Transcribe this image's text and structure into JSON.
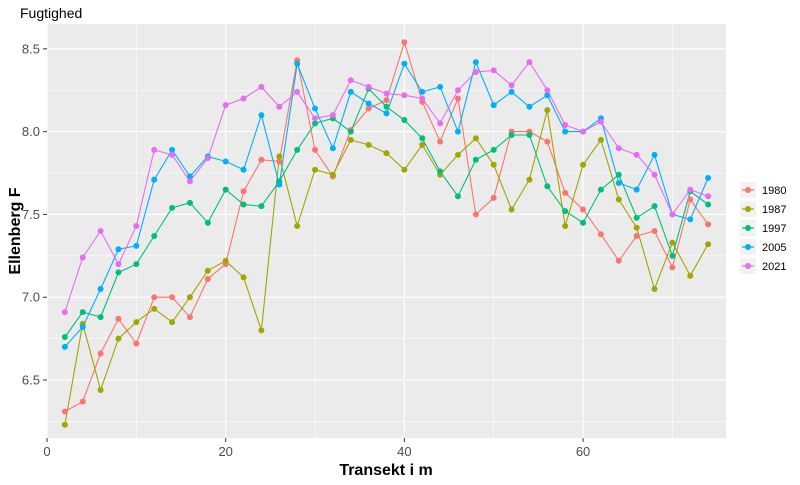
{
  "chart_data": {
    "type": "line",
    "title": "Fugtighed",
    "xlabel": "Transekt i m",
    "ylabel": "Ellenberg F",
    "xlim": [
      0,
      76
    ],
    "ylim": [
      6.15,
      8.65
    ],
    "x_ticks": [
      0,
      20,
      40,
      60
    ],
    "x_tick_labels": [
      "0",
      "20",
      "40",
      "60"
    ],
    "y_ticks": [
      6.5,
      7.0,
      7.5,
      8.0,
      8.5
    ],
    "y_tick_labels": [
      "6.5",
      "7.0",
      "7.5",
      "8.0",
      "8.5"
    ],
    "grid": true,
    "legend_position": "right",
    "series": [
      {
        "name": "1980",
        "color": "#F8766D",
        "x": [
          2,
          4,
          6,
          8,
          10,
          12,
          14,
          16,
          18,
          20,
          22,
          24,
          26,
          28,
          30,
          32,
          34,
          36,
          38,
          40,
          42,
          44,
          46,
          48,
          50,
          52,
          54,
          56,
          58,
          60,
          62,
          64,
          66,
          68,
          70,
          72,
          74
        ],
        "y": [
          6.31,
          6.37,
          6.66,
          6.87,
          6.72,
          7.0,
          7.0,
          6.88,
          7.11,
          7.2,
          7.64,
          7.83,
          7.82,
          8.43,
          7.89,
          7.73,
          8.01,
          8.14,
          8.19,
          8.54,
          8.18,
          7.94,
          8.2,
          7.5,
          7.6,
          8.0,
          8.0,
          7.94,
          7.63,
          7.53,
          7.38,
          7.22,
          7.37,
          7.4,
          7.18,
          7.59,
          7.44
        ]
      },
      {
        "name": "1987",
        "color": "#A3A500",
        "x": [
          2,
          4,
          6,
          8,
          10,
          12,
          14,
          16,
          18,
          20,
          22,
          24,
          26,
          28,
          30,
          32,
          34,
          36,
          38,
          40,
          42,
          44,
          46,
          48,
          50,
          52,
          54,
          56,
          58,
          60,
          62,
          64,
          66,
          68,
          70,
          72,
          74
        ],
        "y": [
          6.23,
          6.84,
          6.44,
          6.75,
          6.85,
          6.93,
          6.85,
          7.0,
          7.16,
          7.22,
          7.12,
          6.8,
          7.85,
          7.43,
          7.77,
          7.74,
          7.95,
          7.92,
          7.87,
          7.77,
          7.92,
          7.74,
          7.86,
          7.96,
          7.8,
          7.53,
          7.71,
          8.13,
          7.43,
          7.8,
          7.95,
          7.59,
          7.42,
          7.05,
          7.33,
          7.13,
          7.32
        ]
      },
      {
        "name": "1997",
        "color": "#00BF7D",
        "x": [
          2,
          4,
          6,
          8,
          10,
          12,
          14,
          16,
          18,
          20,
          22,
          24,
          26,
          28,
          30,
          32,
          34,
          36,
          38,
          40,
          42,
          44,
          46,
          48,
          50,
          52,
          54,
          56,
          58,
          60,
          62,
          64,
          66,
          68,
          70,
          72,
          74
        ],
        "y": [
          6.76,
          6.91,
          6.88,
          7.15,
          7.2,
          7.37,
          7.54,
          7.57,
          7.45,
          7.65,
          7.56,
          7.55,
          7.7,
          7.89,
          8.05,
          8.08,
          8.0,
          8.26,
          8.15,
          8.07,
          7.96,
          7.76,
          7.61,
          7.83,
          7.89,
          7.98,
          7.98,
          7.67,
          7.52,
          7.45,
          7.65,
          7.74,
          7.48,
          7.55,
          7.25,
          7.64,
          7.56
        ]
      },
      {
        "name": "2005",
        "color": "#00B0F6",
        "x": [
          2,
          4,
          6,
          8,
          10,
          12,
          14,
          16,
          18,
          20,
          22,
          24,
          26,
          28,
          30,
          32,
          34,
          36,
          38,
          40,
          42,
          44,
          46,
          48,
          50,
          52,
          54,
          56,
          58,
          60,
          62,
          64,
          66,
          68,
          70,
          72,
          74
        ],
        "y": [
          6.7,
          6.82,
          7.05,
          7.29,
          7.31,
          7.71,
          7.89,
          7.73,
          7.85,
          7.82,
          7.77,
          8.1,
          7.68,
          8.41,
          8.14,
          7.9,
          8.24,
          8.17,
          8.11,
          8.41,
          8.24,
          8.27,
          8.0,
          8.42,
          8.16,
          8.24,
          8.15,
          8.22,
          8.0,
          8.0,
          8.08,
          7.69,
          7.65,
          7.86,
          7.5,
          7.47,
          7.72
        ]
      },
      {
        "name": "2021",
        "color": "#E76BF3",
        "x": [
          2,
          4,
          6,
          8,
          10,
          12,
          14,
          16,
          18,
          20,
          22,
          24,
          26,
          28,
          30,
          32,
          34,
          36,
          38,
          40,
          42,
          44,
          46,
          48,
          50,
          52,
          54,
          56,
          58,
          60,
          62,
          64,
          66,
          68,
          70,
          72,
          74
        ],
        "y": [
          6.91,
          7.24,
          7.4,
          7.2,
          7.43,
          7.89,
          7.86,
          7.7,
          7.84,
          8.16,
          8.2,
          8.27,
          8.15,
          8.24,
          8.08,
          8.1,
          8.31,
          8.27,
          8.23,
          8.22,
          8.2,
          8.05,
          8.25,
          8.36,
          8.37,
          8.28,
          8.42,
          8.25,
          8.04,
          8.0,
          8.06,
          7.9,
          7.86,
          7.74,
          7.5,
          7.65,
          7.61
        ]
      }
    ]
  }
}
